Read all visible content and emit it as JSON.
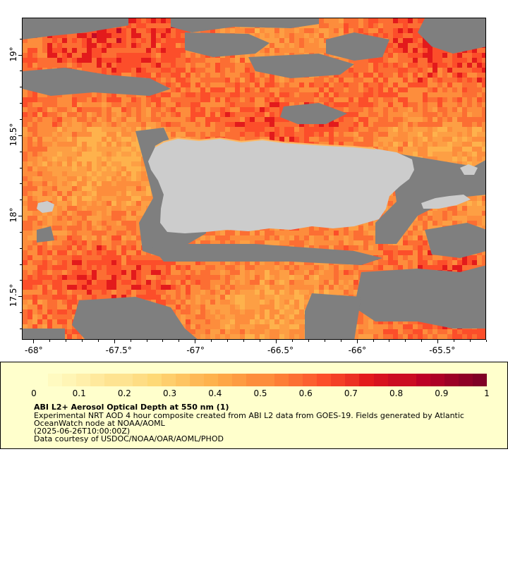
{
  "map": {
    "lon_range": [
      -68.07,
      -65.2
    ],
    "lat_range": [
      17.23,
      19.23
    ],
    "lon_ticks": [
      "-68°",
      "-67.5°",
      "-67°",
      "-66.5°",
      "-66°",
      "-65.5°"
    ],
    "lon_tick_values": [
      -68,
      -67.5,
      -67,
      -66.5,
      -66,
      -65.5
    ],
    "lat_ticks": [
      "19°",
      "18.5°",
      "18°",
      "17.5°"
    ],
    "lat_tick_values": [
      19,
      18.5,
      18,
      17.5
    ],
    "colors": {
      "no_data": "#7f7f7f",
      "land": "#cccccc",
      "aod_low": "#ffffcc",
      "aod_mid": "#fd8d3c",
      "aod_high": "#800026"
    }
  },
  "legend": {
    "colorbar_labels": [
      "0",
      "0.1",
      "0.2",
      "0.3",
      "0.4",
      "0.5",
      "0.6",
      "0.7",
      "0.8",
      "0.9",
      "1"
    ],
    "title": "ABI L2+ Aerosol Optical Depth at 550 nm (1)",
    "line1": "Experimental NRT AOD 4 hour composite created from ABI L2 data from GOES-19. Fields generated by Atlantic OceanWatch node at NOAA/AOML",
    "line2": "(2025-06-26T10:00:00Z)",
    "line3": "Data courtesy of USDOC/NOAA/OAR/AOML/PHOD"
  }
}
